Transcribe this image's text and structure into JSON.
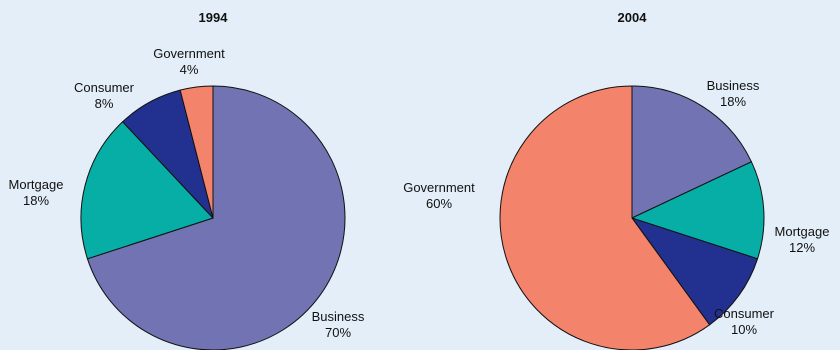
{
  "chart_data": [
    {
      "type": "pie",
      "title": "1994",
      "slices": [
        {
          "label": "Business",
          "value": 70,
          "value_label": "70%",
          "color": "#7173b2"
        },
        {
          "label": "Mortgage",
          "value": 18,
          "value_label": "18%",
          "color": "#06aea6"
        },
        {
          "label": "Consumer",
          "value": 8,
          "value_label": "8%",
          "color": "#22318f"
        },
        {
          "label": "Government",
          "value": 4,
          "value_label": "4%",
          "color": "#f4836b"
        }
      ]
    },
    {
      "type": "pie",
      "title": "2004",
      "slices": [
        {
          "label": "Business",
          "value": 18,
          "value_label": "18%",
          "color": "#7173b2"
        },
        {
          "label": "Mortgage",
          "value": 12,
          "value_label": "12%",
          "color": "#06aea6"
        },
        {
          "label": "Consumer",
          "value": 10,
          "value_label": "10%",
          "color": "#22318f"
        },
        {
          "label": "Government",
          "value": 60,
          "value_label": "60%",
          "color": "#f4836b"
        }
      ]
    }
  ]
}
